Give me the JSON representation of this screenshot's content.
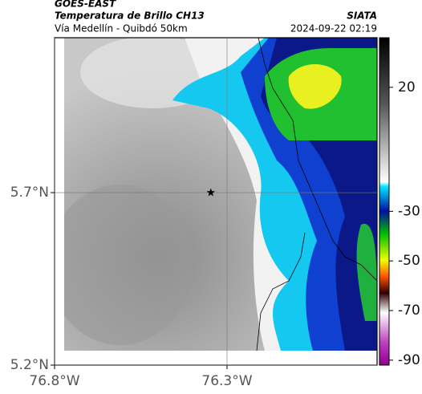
{
  "header": {
    "source": "GOES-EAST",
    "title": "Temperatura de Brillo CH13",
    "route": "Vía Medellín - Quibdó 50km",
    "org": "SIATA",
    "timestamp": "2024-09-22 02:19"
  },
  "map": {
    "xlim": [
      -76.8,
      -75.865
    ],
    "ylim": [
      5.2,
      6.149
    ],
    "xticks": [
      {
        "value": -76.8,
        "label": "76.8°W"
      },
      {
        "value": -76.3,
        "label": "76.3°W"
      }
    ],
    "yticks": [
      {
        "value": 5.2,
        "label": "5.2°N"
      },
      {
        "value": 5.7,
        "label": "5.7°N"
      }
    ],
    "station": {
      "lon": -76.347,
      "lat": 5.7
    }
  },
  "colorbar": {
    "lim": [
      -92,
      40
    ],
    "ticks": [
      20,
      -30,
      -50,
      -70,
      -90
    ]
  }
}
